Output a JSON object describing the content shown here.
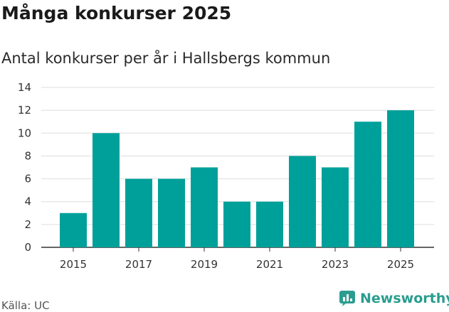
{
  "title": "Många konkurser 2025",
  "subtitle": "Antal konkurser per år i Hallsbergs kommun",
  "source": "Källa: UC",
  "brand": "Newsworthy",
  "colors": {
    "bar": "#00a09a",
    "grid": "#dddddd",
    "brand": "#2a9d8f"
  },
  "chart_data": {
    "type": "bar",
    "categories": [
      "2015",
      "2016",
      "2017",
      "2018",
      "2019",
      "2020",
      "2021",
      "2022",
      "2023",
      "2024",
      "2025"
    ],
    "values": [
      3,
      10,
      6,
      6,
      7,
      4,
      4,
      8,
      7,
      11,
      12
    ],
    "x_tick_labels": [
      "2015",
      "2017",
      "2019",
      "2021",
      "2023",
      "2025"
    ],
    "y_ticks": [
      0,
      2,
      4,
      6,
      8,
      10,
      12,
      14
    ],
    "ylim": [
      0,
      14
    ],
    "title": "Många konkurser 2025",
    "subtitle": "Antal konkurser per år i Hallsbergs kommun",
    "xlabel": "",
    "ylabel": "",
    "grid": true,
    "legend": "none"
  }
}
